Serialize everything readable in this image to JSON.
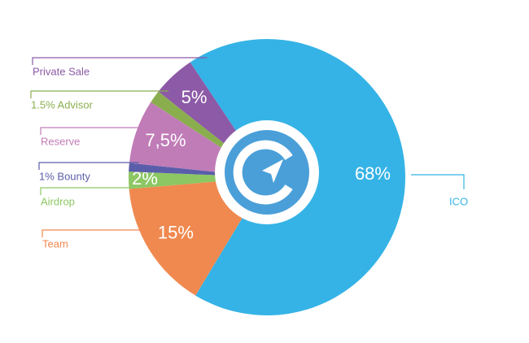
{
  "chart_data": {
    "type": "pie",
    "categories": [
      "ICO",
      "Team",
      "Airdrop",
      "1% Bounty",
      "Reserve",
      "1.5% Advisor",
      "Private Sale"
    ],
    "values": [
      68,
      15,
      2,
      1,
      7.5,
      1.5,
      5
    ],
    "value_labels": [
      "68%",
      "15%",
      "2%",
      null,
      "7,5%",
      null,
      "5%"
    ],
    "colors": [
      "#35b3e6",
      "#f0894f",
      "#8dc764",
      "#5a5eaa",
      "#c07cb7",
      "#8aae4e",
      "#8c5aa6"
    ]
  }
}
